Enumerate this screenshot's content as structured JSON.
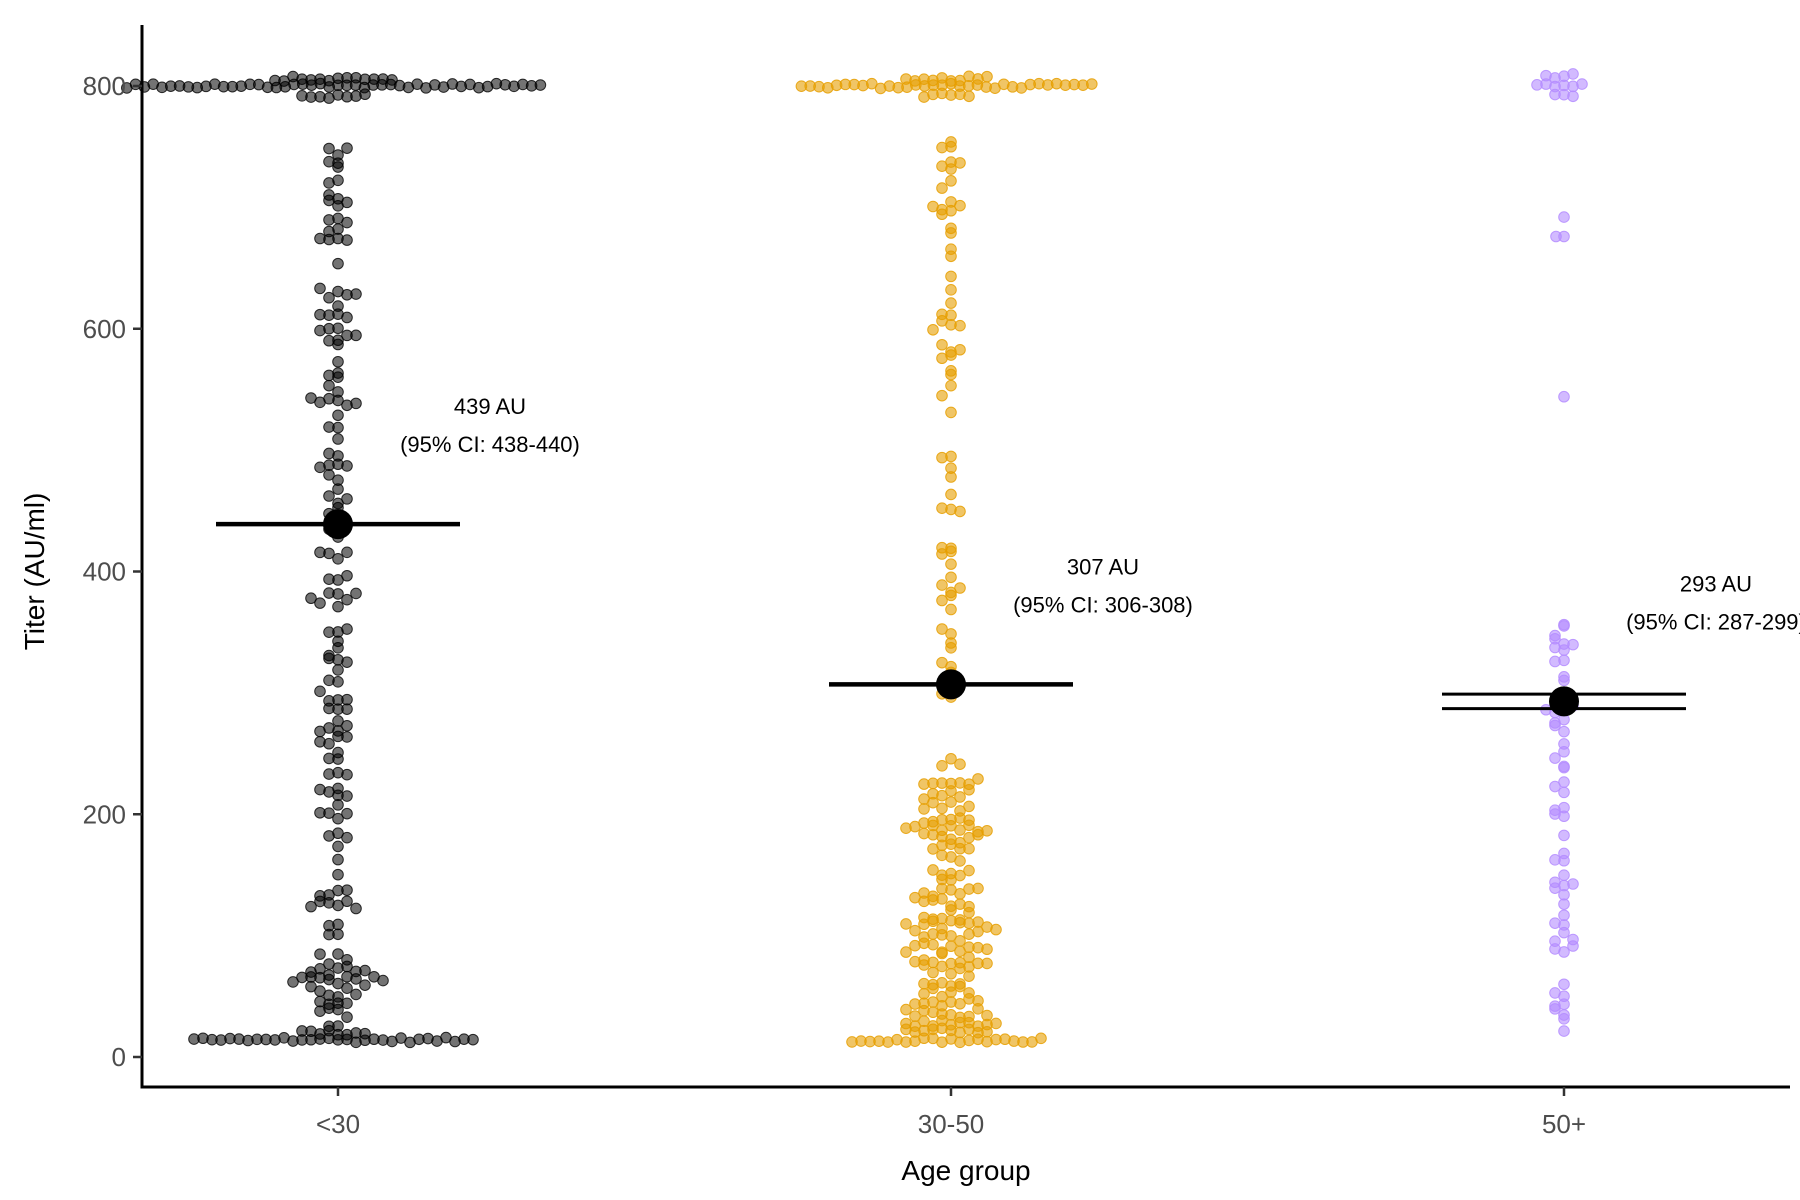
{
  "chart_data": {
    "type": "scatter",
    "subtype": "beeswarm with mean and 95% CI",
    "xlabel": "Age group",
    "ylabel": "Titer (AU/ml)",
    "categories": [
      "<30",
      "30-50",
      "50+"
    ],
    "yticks": [
      0,
      200,
      400,
      600,
      800
    ],
    "ytick_labels": [
      "0",
      "200",
      "400",
      "600",
      "800"
    ],
    "ylim": [
      -25,
      850
    ],
    "grid": false,
    "legend": "none",
    "series": [
      {
        "category": "<30",
        "color": "#000000",
        "point_count": 340,
        "mean": 439,
        "ci_low": 438,
        "ci_high": 440,
        "annotation_line1": "439 AU",
        "annotation_line2": "(95% CI: 438-440)"
      },
      {
        "category": "30-50",
        "color": "#E69F00",
        "point_count": 300,
        "mean": 307,
        "ci_low": 306,
        "ci_high": 308,
        "annotation_line1": "307 AU",
        "annotation_line2": "(95% CI: 306-308)"
      },
      {
        "category": "50+",
        "color": "#B48CFF",
        "point_count": 80,
        "mean": 293,
        "ci_low": 287,
        "ci_high": 299,
        "annotation_line1": "293 AU",
        "annotation_line2": "(95% CI: 287-299)"
      }
    ]
  }
}
